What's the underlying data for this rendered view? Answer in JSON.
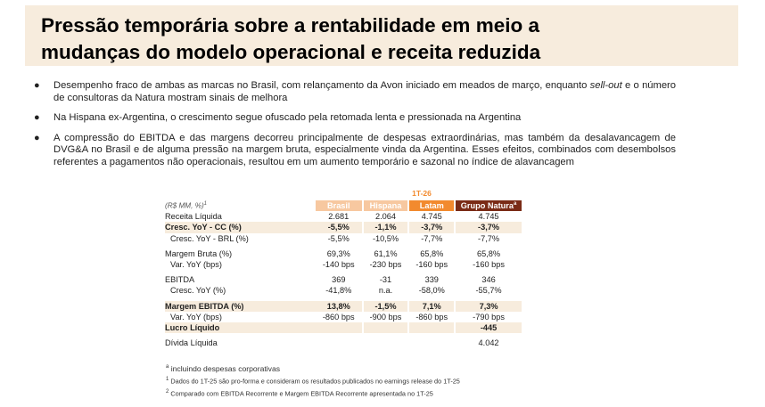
{
  "title": {
    "line1": "Pressão temporária sobre a rentabilidade em meio a",
    "line2": "mudanças do modelo operacional e receita reduzida"
  },
  "bullets": [
    {
      "pre": "Desempenho fraco de ambas as marcas no Brasil, com relançamento da Avon iniciado em meados de março, enquanto ",
      "em": "sell-out",
      "post": " e o número de consultoras da Natura mostram sinais de melhora"
    },
    {
      "pre": "Na Hispana ex-Argentina, o crescimento segue ofuscado pela retomada lenta e pressionada na Argentina",
      "em": "",
      "post": ""
    },
    {
      "pre": "A compressão do EBITDA e das margens decorreu principalmente de despesas extraordinárias, mas também da desalavancagem de DVG&A no Brasil e de alguma pressão na margem bruta, especialmente vinda da Argentina. Esses efeitos, combinados com desembolsos referentes a pagamentos não operacionais, resultou em um aumento temporário e sazonal no índice de alavancagem",
      "em": "",
      "post": ""
    }
  ],
  "table": {
    "period": "1T-26",
    "unit": "(R$ MM, %)",
    "unit_sup": "1",
    "headers": [
      "Brasil",
      "Hispana",
      "Latam",
      "Grupo Natura"
    ],
    "gn_sup": "a",
    "rows": [
      {
        "label": "Receita Líquida",
        "values": [
          "2.681",
          "2.064",
          "4.745",
          "4.745"
        ]
      },
      {
        "label": "Cresc. YoY - CC (%)",
        "values": [
          "-5,5%",
          "-1,1%",
          "-3,7%",
          "-3,7%"
        ]
      },
      {
        "label": "Cresc. YoY - BRL (%)",
        "values": [
          "-5,5%",
          "-10,5%",
          "-7,7%",
          "-7,7%"
        ]
      },
      {
        "label": "Margem Bruta (%)",
        "values": [
          "69,3%",
          "61,1%",
          "65,8%",
          "65,8%"
        ]
      },
      {
        "label": "Var. YoY (bps)",
        "values": [
          "-140 bps",
          "-230 bps",
          "-160 bps",
          "-160 bps"
        ]
      },
      {
        "label": "EBITDA",
        "values": [
          "369",
          "-31",
          "339",
          "346"
        ]
      },
      {
        "label": "Cresc. YoY (%)",
        "values": [
          "-41,8%",
          "n.a.",
          "-58,0%",
          "-55,7%"
        ]
      },
      {
        "label": "Margem EBITDA (%)",
        "values": [
          "13,8%",
          "-1,5%",
          "7,1%",
          "7,3%"
        ]
      },
      {
        "label": "Var. YoY (bps)",
        "values": [
          "-860 bps",
          "-900 bps",
          "-860 bps",
          "-790 bps"
        ]
      },
      {
        "label": "Lucro Líquido",
        "values": [
          "",
          "",
          "",
          "-445"
        ]
      },
      {
        "label": "Dívida Líquida",
        "values": [
          "",
          "",
          "",
          "4.042"
        ]
      }
    ]
  },
  "notes": [
    {
      "sup": "a",
      "text": " incluindo despesas corporativas"
    },
    {
      "sup": "1",
      "text": " Dados do 1T-25 são pro-forma e consideram os resultados publicados no earnings release do 1T-25"
    },
    {
      "sup": "2",
      "text": " Comparado com EBITDA Recorrente e Margem EBITDA Recorrente apresentada no 1T-25"
    }
  ],
  "colors": {
    "accent_orange": "#f28a2e",
    "light_orange": "#f7c8a0",
    "dark_brown": "#7a2b16",
    "beige": "#f7ecdd"
  }
}
